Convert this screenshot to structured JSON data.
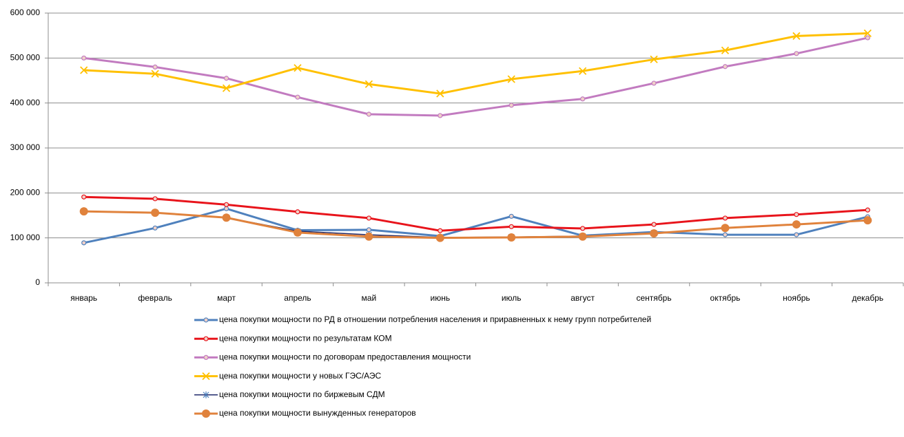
{
  "chart_data": {
    "type": "line",
    "categories": [
      "январь",
      "февраль",
      "март",
      "апрель",
      "май",
      "июнь",
      "июль",
      "август",
      "сентябрь",
      "октябрь",
      "ноябрь",
      "декабрь"
    ],
    "series": [
      {
        "name": "цена покупки мощности по РД в отношении потребления населения и приравненных к нему групп потребителей",
        "color": "#4f81bd",
        "marker": "circle",
        "values": [
          89000,
          122000,
          165000,
          117000,
          118000,
          104000,
          148000,
          105000,
          113000,
          107000,
          107000,
          147000
        ]
      },
      {
        "name": "цена покупки мощности по результатам КОМ",
        "color": "#e8141b",
        "marker": "circle",
        "values": [
          191000,
          187000,
          174000,
          158000,
          144000,
          116000,
          125000,
          121000,
          130000,
          144000,
          152000,
          162000
        ]
      },
      {
        "name": "цена покупки мощности по договорам предоставления мощности",
        "color": "#c27bc0",
        "marker": "circle",
        "values": [
          500000,
          480000,
          455000,
          413000,
          375000,
          372000,
          395000,
          409000,
          444000,
          481000,
          510000,
          545000
        ]
      },
      {
        "name": "цена покупки мощности у новых ГЭС/АЭС",
        "color": "#ffc000",
        "marker": "x",
        "values": [
          473000,
          465000,
          433000,
          478000,
          442000,
          421000,
          453000,
          471000,
          497000,
          517000,
          549000,
          555000
        ]
      },
      {
        "name": "цена покупки мощности по биржевым СДМ",
        "color": "#1f2a6b",
        "marker": "star",
        "values": [
          null,
          null,
          145000,
          115000,
          107000,
          101000,
          102000,
          104000,
          111000,
          null,
          null,
          null
        ]
      },
      {
        "name": "цена покупки мощности вынужденных генераторов",
        "color": "#e0823c",
        "marker": "bigcircle",
        "values": [
          159000,
          156000,
          145000,
          112000,
          103000,
          100000,
          101000,
          103000,
          110000,
          122000,
          130000,
          139000
        ]
      }
    ],
    "ylim": [
      0,
      600000
    ],
    "yticks": [
      {
        "value": 0,
        "label": "0"
      },
      {
        "value": 100000,
        "label": "100 000"
      },
      {
        "value": 200000,
        "label": "200 000"
      },
      {
        "value": 300000,
        "label": "300 000"
      },
      {
        "value": 400000,
        "label": "400 000"
      },
      {
        "value": 500000,
        "label": "500 000"
      },
      {
        "value": 600000,
        "label": "600 000"
      }
    ],
    "grid": true
  }
}
